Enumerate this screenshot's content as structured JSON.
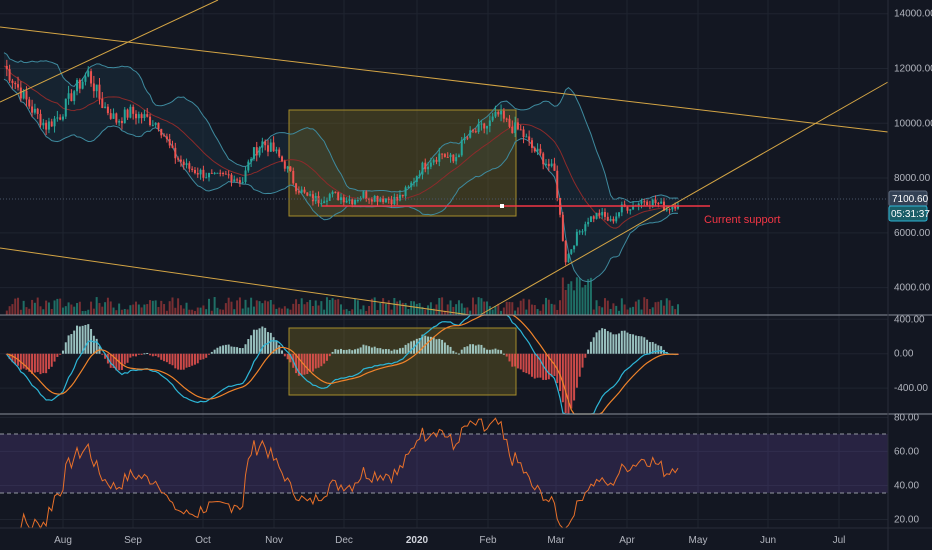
{
  "chart_data": [
    {
      "type": "candlestick",
      "panel": "price",
      "y_ticks": [
        {
          "value": 4000,
          "label": "4000.00"
        },
        {
          "value": 6000,
          "label": "6000.00"
        },
        {
          "value": 8000,
          "label": "8000.00"
        },
        {
          "value": 10000,
          "label": "10000.00"
        },
        {
          "value": 12000,
          "label": "12000.00"
        },
        {
          "value": 14000,
          "label": "14000.00"
        }
      ],
      "ylim": [
        3000,
        14500
      ],
      "x_ticks": [
        "Aug",
        "Sep",
        "Oct",
        "Nov",
        "Dec",
        "2020",
        "Feb",
        "Mar",
        "Apr",
        "May",
        "Jun",
        "Jul"
      ],
      "current_price_label": "7100.60",
      "countdown_label": "05:31:37",
      "annotation": "Current support",
      "support_level": 6900,
      "overlays": [
        "bollinger-bands",
        "moving-average",
        "volume",
        "trendlines",
        "consolidation-box"
      ],
      "close_path": [
        [
          0,
          12100
        ],
        [
          5,
          11300
        ],
        [
          10,
          10500
        ],
        [
          15,
          9900
        ],
        [
          20,
          10300
        ],
        [
          25,
          11200
        ],
        [
          30,
          11800
        ],
        [
          35,
          10700
        ],
        [
          40,
          10100
        ],
        [
          45,
          10400
        ],
        [
          50,
          10200
        ],
        [
          55,
          10000
        ],
        [
          60,
          8900
        ],
        [
          65,
          8400
        ],
        [
          70,
          8200
        ],
        [
          75,
          8000
        ],
        [
          80,
          8100
        ],
        [
          85,
          7900
        ],
        [
          88,
          8800
        ],
        [
          92,
          9300
        ],
        [
          96,
          9000
        ],
        [
          100,
          8500
        ],
        [
          104,
          7700
        ],
        [
          108,
          7300
        ],
        [
          112,
          7200
        ],
        [
          116,
          7400
        ],
        [
          120,
          7300
        ],
        [
          124,
          7200
        ],
        [
          128,
          7400
        ],
        [
          132,
          7300
        ],
        [
          136,
          7250
        ],
        [
          140,
          7200
        ],
        [
          144,
          7600
        ],
        [
          148,
          8300
        ],
        [
          152,
          8700
        ],
        [
          156,
          8900
        ],
        [
          160,
          8600
        ],
        [
          164,
          9400
        ],
        [
          168,
          9700
        ],
        [
          172,
          9900
        ],
        [
          176,
          10300
        ],
        [
          180,
          9900
        ],
        [
          184,
          9700
        ],
        [
          188,
          9100
        ],
        [
          192,
          8700
        ],
        [
          196,
          8200
        ],
        [
          200,
          5000
        ],
        [
          204,
          5900
        ],
        [
          208,
          6500
        ],
        [
          212,
          6700
        ],
        [
          216,
          6400
        ],
        [
          220,
          6900
        ],
        [
          224,
          7000
        ],
        [
          228,
          7200
        ],
        [
          232,
          7100
        ],
        [
          236,
          6900
        ],
        [
          240,
          7100
        ]
      ]
    },
    {
      "type": "line",
      "panel": "macd",
      "y_ticks": [
        {
          "value": 400,
          "label": "400.00"
        },
        {
          "value": 0,
          "label": "0.00"
        },
        {
          "value": -400,
          "label": "-400.00"
        }
      ],
      "ylim": [
        -700,
        450
      ]
    },
    {
      "type": "line",
      "panel": "rsi",
      "y_ticks": [
        {
          "value": 80,
          "label": "80.00"
        },
        {
          "value": 60,
          "label": "60.00"
        },
        {
          "value": 40,
          "label": "40.00"
        },
        {
          "value": 20,
          "label": "20.00"
        }
      ],
      "ylim": [
        15,
        82
      ],
      "band": [
        30,
        70
      ]
    }
  ]
}
